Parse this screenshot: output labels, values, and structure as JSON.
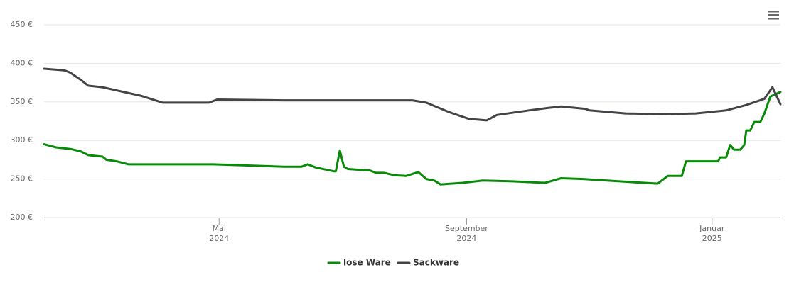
{
  "chart_data": {
    "type": "line",
    "x": [
      "2024-02-04",
      "2024-02-07",
      "2024-02-10",
      "2024-02-14",
      "2024-02-17",
      "2024-02-22",
      "2024-02-26",
      "2024-03-04",
      "2024-03-06",
      "2024-03-11",
      "2024-03-17",
      "2024-03-23",
      "2024-04-03",
      "2024-04-26",
      "2024-04-28",
      "2024-04-30",
      "2024-06-02",
      "2024-06-11",
      "2024-06-14",
      "2024-06-18",
      "2024-06-27",
      "2024-06-28",
      "2024-06-30",
      "2024-07-02",
      "2024-07-04",
      "2024-07-15",
      "2024-07-18",
      "2024-07-22",
      "2024-07-27",
      "2024-08-02",
      "2024-08-05",
      "2024-08-08",
      "2024-08-12",
      "2024-08-16",
      "2024-08-19",
      "2024-08-23",
      "2024-08-30",
      "2024-09-02",
      "2024-09-09",
      "2024-09-11",
      "2024-09-16",
      "2024-09-24",
      "2024-10-02",
      "2024-10-10",
      "2024-10-11",
      "2024-10-18",
      "2024-10-29",
      "2024-10-30",
      "2024-11-01",
      "2024-11-16",
      "2024-11-19",
      "2024-12-05",
      "2024-12-07",
      "2024-12-10",
      "2024-12-17",
      "2024-12-19",
      "2024-12-21",
      "2024-12-24",
      "2025-01-04",
      "2025-01-05",
      "2025-01-08",
      "2025-01-10",
      "2025-01-12",
      "2025-01-15",
      "2025-01-17",
      "2025-01-18",
      "2025-01-20",
      "2025-01-22",
      "2025-01-25",
      "2025-01-27",
      "2025-01-30",
      "2025-01-31",
      "2025-02-04"
    ],
    "series": [
      {
        "name": "lose Ware",
        "color": "#078b07",
        "values": [
          295,
          293,
          291,
          null,
          289,
          286,
          281,
          279,
          275,
          273,
          269,
          null,
          null,
          null,
          269,
          null,
          266,
          266,
          269,
          265,
          260,
          260,
          287,
          266,
          263,
          261,
          258,
          258,
          255,
          254,
          null,
          259,
          250,
          248,
          243,
          null,
          245,
          null,
          248,
          null,
          null,
          247,
          null,
          245,
          null,
          251,
          250,
          null,
          null,
          247,
          null,
          244,
          null,
          254,
          254,
          273,
          273,
          null,
          273,
          278,
          278,
          294,
          288,
          288,
          294,
          313,
          313,
          324,
          324,
          335,
          357,
          null,
          363
        ]
      },
      {
        "name": "Sackware",
        "color": "#434348",
        "values": [
          393,
          null,
          null,
          391,
          388,
          379,
          371,
          369,
          null,
          null,
          null,
          358,
          349,
          349,
          null,
          353,
          352,
          null,
          null,
          null,
          null,
          null,
          null,
          null,
          null,
          null,
          null,
          null,
          null,
          null,
          352,
          null,
          349,
          null,
          null,
          337,
          null,
          328,
          null,
          326,
          333,
          null,
          339,
          null,
          342,
          344,
          null,
          341,
          339,
          null,
          335,
          null,
          334,
          null,
          null,
          null,
          null,
          335,
          null,
          null,
          339,
          null,
          null,
          null,
          null,
          346,
          null,
          null,
          null,
          354,
          null,
          369,
          347
        ]
      }
    ],
    "xlim": [
      "2024-02-04",
      "2025-02-04"
    ],
    "xticks": [
      {
        "value": "2024-05-01",
        "label": [
          "Mai",
          "2024"
        ]
      },
      {
        "value": "2024-09-01",
        "label": [
          "September",
          "2024"
        ]
      },
      {
        "value": "2025-01-01",
        "label": [
          "Januar",
          "2025"
        ]
      }
    ],
    "ylim": [
      200,
      450
    ],
    "yticks": [
      {
        "value": 200,
        "label": "200 €"
      },
      {
        "value": 250,
        "label": "250 €"
      },
      {
        "value": 300,
        "label": "300 €"
      },
      {
        "value": 350,
        "label": "350 €"
      },
      {
        "value": 400,
        "label": "400 €"
      },
      {
        "value": 450,
        "label": "450 €"
      }
    ],
    "grid": true,
    "legend": "bottom"
  }
}
